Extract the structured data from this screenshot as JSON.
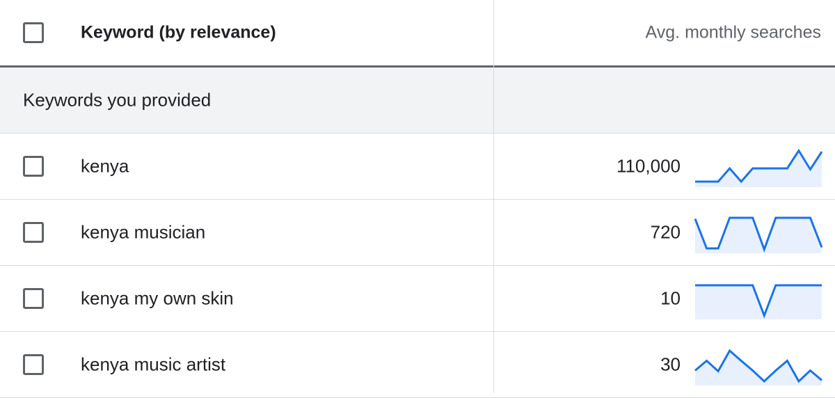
{
  "header": {
    "keyword_col": "Keyword (by relevance)",
    "searches_col": "Avg. monthly searches"
  },
  "group": {
    "label": "Keywords you provided"
  },
  "colors": {
    "line": "#1a73e8",
    "fill": "#e8f0fe"
  },
  "rows": [
    {
      "keyword": "kenya",
      "searches": "110,000",
      "trend": [
        0.08,
        0.08,
        0.08,
        0.46,
        0.08,
        0.46,
        0.46,
        0.46,
        0.46,
        0.97,
        0.43,
        0.94
      ]
    },
    {
      "keyword": "kenya musician",
      "searches": "720",
      "trend": [
        0.91,
        0.06,
        0.06,
        0.94,
        0.94,
        0.94,
        0.03,
        0.94,
        0.94,
        0.94,
        0.94,
        0.09
      ]
    },
    {
      "keyword": "kenya my own skin",
      "searches": "10",
      "trend": [
        0.9,
        0.9,
        0.9,
        0.9,
        0.9,
        0.9,
        0.03,
        0.9,
        0.9,
        0.9,
        0.9,
        0.9
      ]
    },
    {
      "keyword": "kenya music artist",
      "searches": "30",
      "trend": [
        0.35,
        0.63,
        0.33,
        0.92,
        0.63,
        0.35,
        0.04,
        0.35,
        0.63,
        0.04,
        0.35,
        0.07
      ]
    }
  ]
}
